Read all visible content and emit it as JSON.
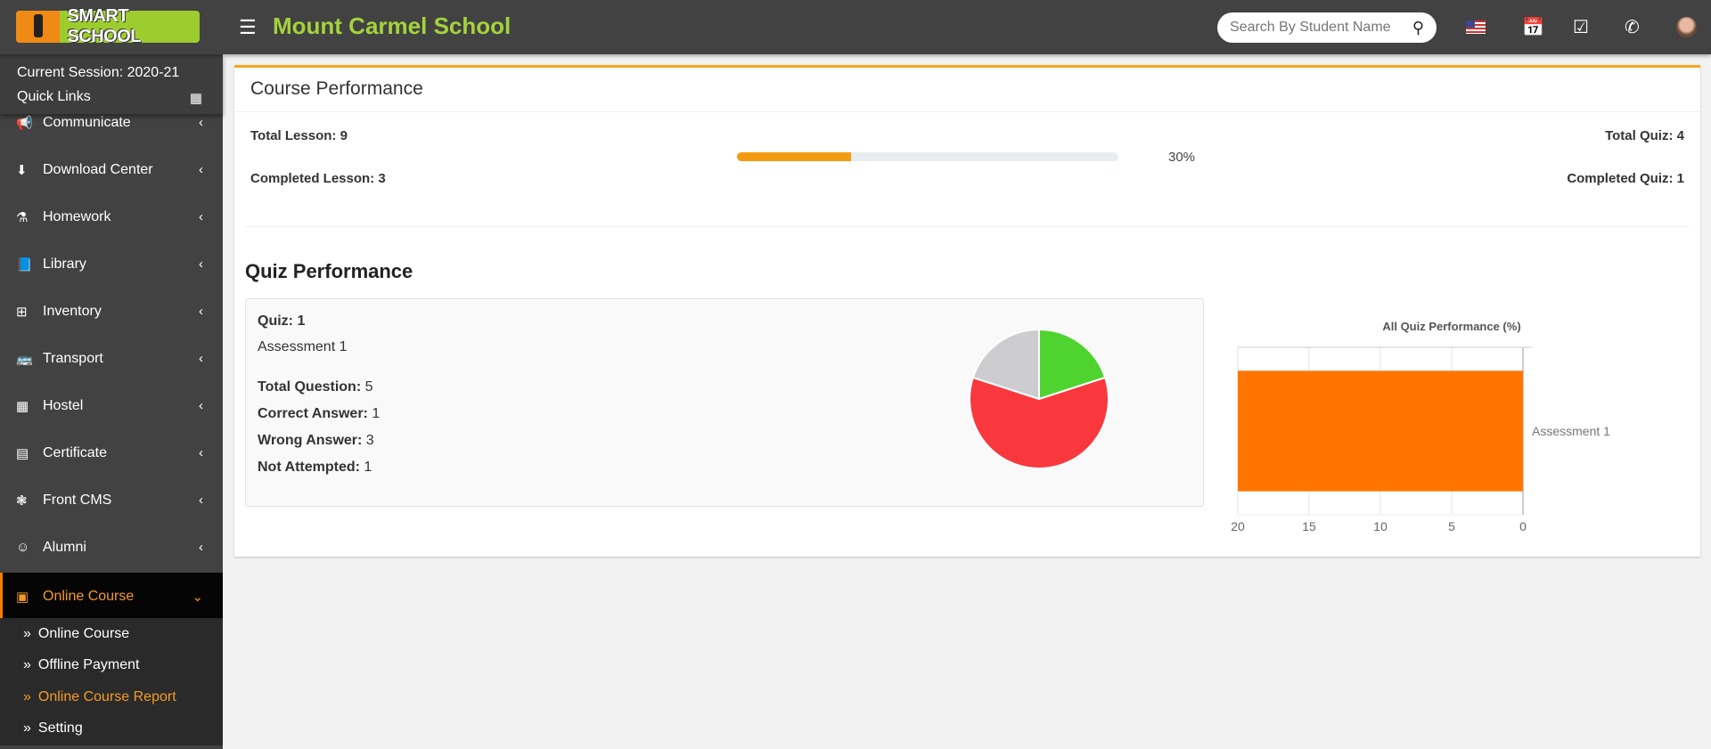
{
  "header": {
    "logo_text": "SMART SCHOOL",
    "school_name": "Mount Carmel School",
    "search_placeholder": "Search By Student Name"
  },
  "sidebar": {
    "session": "Current Session: 2020-21",
    "quick_links": "Quick Links",
    "items": [
      {
        "label": "Communicate",
        "icon": "bullhorn-icon"
      },
      {
        "label": "Download Center",
        "icon": "download-icon"
      },
      {
        "label": "Homework",
        "icon": "flask-icon"
      },
      {
        "label": "Library",
        "icon": "book-icon"
      },
      {
        "label": "Inventory",
        "icon": "inventory-icon"
      },
      {
        "label": "Transport",
        "icon": "bus-icon"
      },
      {
        "label": "Hostel",
        "icon": "building-icon"
      },
      {
        "label": "Certificate",
        "icon": "certificate-icon"
      },
      {
        "label": "Front CMS",
        "icon": "cms-icon"
      },
      {
        "label": "Alumni",
        "icon": "alumni-icon"
      },
      {
        "label": "Online Course",
        "icon": "video-file-icon"
      }
    ],
    "submenu": [
      {
        "label": "Online Course"
      },
      {
        "label": "Offline Payment"
      },
      {
        "label": "Online Course Report"
      },
      {
        "label": "Setting"
      }
    ]
  },
  "course": {
    "title": "Course Performance",
    "total_lesson_label": "Total Lesson:",
    "total_lesson": "9",
    "completed_lesson_label": "Completed Lesson:",
    "completed_lesson": "3",
    "progress_percent": 30,
    "progress_text": "30%",
    "total_quiz_label": "Total Quiz:",
    "total_quiz": "4",
    "completed_quiz_label": "Completed Quiz:",
    "completed_quiz": "1"
  },
  "quiz": {
    "title": "Quiz Performance",
    "quiz_label": "Quiz:",
    "quiz_no": "1",
    "name": "Assessment 1",
    "total_question_label": "Total Question:",
    "total_question": "5",
    "correct_label": "Correct Answer:",
    "correct": "1",
    "wrong_label": "Wrong Answer:",
    "wrong": "3",
    "not_attempted_label": "Not Attempted:",
    "not_attempted": "1"
  },
  "colors": {
    "accent": "#f5a623",
    "correct": "#4fd32e",
    "wrong": "#f9383d",
    "not_attempted": "#cdcdcf",
    "bar": "#ff7500"
  },
  "chart_data": [
    {
      "type": "pie",
      "slices": [
        {
          "label": "Correct Answer",
          "value": 1,
          "color": "#4fd32e"
        },
        {
          "label": "Wrong Answer",
          "value": 3,
          "color": "#f9383d"
        },
        {
          "label": "Not Attempted",
          "value": 1,
          "color": "#cdcdcf"
        }
      ]
    },
    {
      "type": "bar",
      "orientation": "horizontal",
      "title": "All Quiz Performance (%)",
      "categories": [
        "Assessment 1"
      ],
      "values": [
        20
      ],
      "xlim": [
        20,
        0
      ],
      "x_reversed": true,
      "ticks": [
        20,
        15,
        10,
        5,
        0
      ],
      "grid": true
    }
  ]
}
